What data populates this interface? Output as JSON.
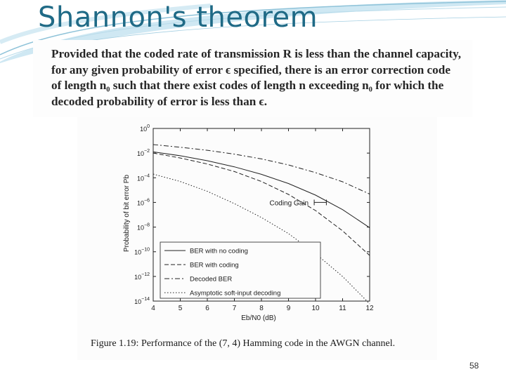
{
  "slide": {
    "title": "Shannon's theorem",
    "theorem_lines": [
      "Provided that the coded rate of transmission R is less than the channel capacity,",
      "for any given probability of error ϵ specified, there is an error correction code",
      "of length n₀ such that there exist codes of length n exceeding n₀ for which the",
      "decoded probability of error is less than ϵ."
    ],
    "caption": "Figure 1.19: Performance of the (7, 4) Hamming code in the AWGN channel.",
    "page_number": "58",
    "accent_color": "#1f6a86"
  },
  "chart_data": {
    "type": "line",
    "xlabel": "Eb/N0 (dB)",
    "ylabel": "Probability of bit error Pb",
    "x": [
      4,
      5,
      6,
      7,
      8,
      9,
      10,
      11,
      12
    ],
    "xlim": [
      4,
      12
    ],
    "ylim": [
      1e-14,
      1
    ],
    "yscale": "log",
    "x_ticks": [
      "4",
      "5",
      "6",
      "7",
      "8",
      "9",
      "10",
      "11",
      "12"
    ],
    "y_ticks": [
      {
        "base": "10",
        "exp": "0",
        "value": 1
      },
      {
        "base": "10",
        "exp": "−2",
        "value": 0.01
      },
      {
        "base": "10",
        "exp": "−4",
        "value": 0.0001
      },
      {
        "base": "10",
        "exp": "−6",
        "value": 1e-06
      },
      {
        "base": "10",
        "exp": "−8",
        "value": 1e-08
      },
      {
        "base": "10",
        "exp": "−10",
        "value": 1e-10
      },
      {
        "base": "10",
        "exp": "−12",
        "value": 1e-12
      },
      {
        "base": "10",
        "exp": "−14",
        "value": 1e-14
      }
    ],
    "grid": false,
    "legend_position": "bottom-left",
    "series": [
      {
        "name": "BER with no coding",
        "style": "solid",
        "values": [
          0.0126,
          0.0061,
          0.0024,
          0.00077,
          0.00019,
          3.4e-05,
          3.9e-06,
          2.6e-07,
          9e-09
        ]
      },
      {
        "name": "BER with coding",
        "style": "dashed",
        "values": [
          0.01,
          0.004,
          0.0013,
          0.00032,
          5e-05,
          4.5e-06,
          2.2e-07,
          5e-09,
          5e-11
        ]
      },
      {
        "name": "Decoded BER",
        "style": "dashdot",
        "values": [
          0.049,
          0.03,
          0.017,
          0.0083,
          0.0034,
          0.0011,
          0.00026,
          4.7e-05,
          4.8e-06
        ]
      },
      {
        "name": "Asymptotic soft-input decoding",
        "style": "dotted",
        "values": [
          0.0002,
          5e-05,
          8e-06,
          8e-07,
          6e-08,
          3e-09,
          7e-11,
          1e-12,
          6e-15
        ]
      }
    ],
    "annotations": [
      {
        "text": "Coding Gain"
      }
    ]
  }
}
